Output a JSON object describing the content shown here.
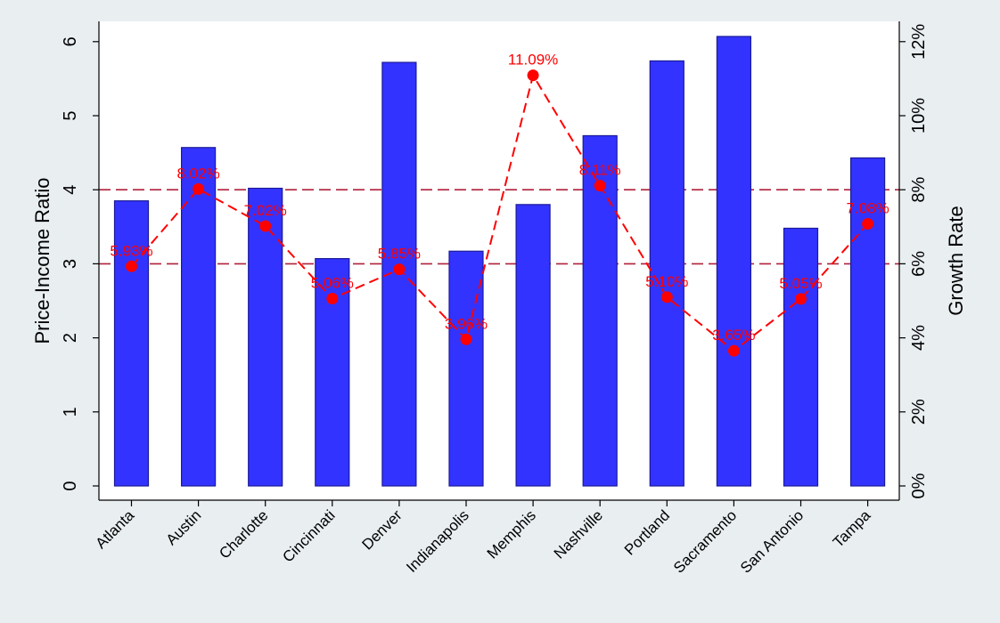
{
  "chart_data": {
    "type": "bar",
    "categories": [
      "Atlanta",
      "Austin",
      "Charlotte",
      "Cincinnati",
      "Denver",
      "Indianapolis",
      "Memphis",
      "Nashville",
      "Portland",
      "Sacramento",
      "San Antonio",
      "Tampa"
    ],
    "series": [
      {
        "type": "bar",
        "axis": "left",
        "values": [
          3.85,
          4.57,
          4.02,
          3.07,
          5.72,
          3.17,
          3.8,
          4.73,
          5.74,
          6.07,
          3.48,
          4.43
        ],
        "color": "#3333ff"
      },
      {
        "type": "line",
        "axis": "right",
        "values": [
          5.93,
          8.02,
          7.02,
          5.06,
          5.85,
          3.96,
          11.09,
          8.11,
          5.1,
          3.65,
          5.05,
          7.08
        ],
        "labels": [
          "5.93%",
          "8.02%",
          "7.02%",
          "5.06%",
          "5.85%",
          "3.96%",
          "11.09%",
          "8.11%",
          "5.10%",
          "3.65%",
          "5.05%",
          "7.08%"
        ],
        "color": "#ff0000"
      }
    ],
    "y_left": {
      "label": "Price-Income Ratio",
      "ylim": [
        0,
        6.2
      ],
      "ticks": [
        0,
        1,
        2,
        3,
        4,
        5,
        6
      ],
      "tick_labels": [
        "0",
        "1",
        "2",
        "3",
        "4",
        "5",
        "6"
      ]
    },
    "y_right": {
      "label": "Growth Rate",
      "ylim": [
        0,
        12.4
      ],
      "ticks": [
        0,
        2,
        4,
        6,
        8,
        10,
        12
      ],
      "tick_labels": [
        "0%",
        "2%",
        "4%",
        "6%",
        "8%",
        "10%",
        "12%"
      ]
    },
    "reference_lines": [
      {
        "axis": "left",
        "value": 3,
        "color": "#b0203a",
        "style": "dashed"
      },
      {
        "axis": "left",
        "value": 4,
        "color": "#b0203a",
        "style": "dashed"
      }
    ],
    "grid": false,
    "legend": "none"
  }
}
